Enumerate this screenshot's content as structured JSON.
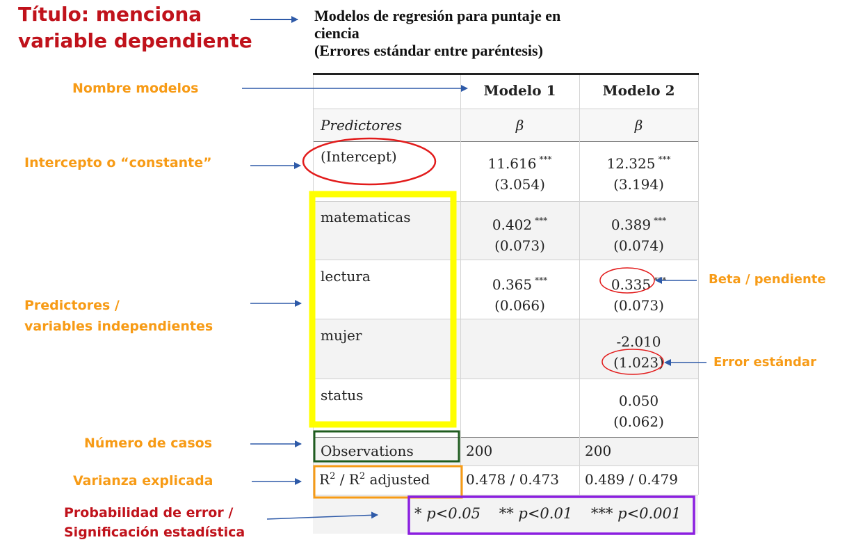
{
  "title": {
    "line1": "Modelos de regresión para puntaje en",
    "line2": "ciencia",
    "line3": "(Errores estándar entre paréntesis)"
  },
  "annotations": {
    "titulo_1": "Título: menciona",
    "titulo_2": "variable dependiente",
    "nombre_modelos": "Nombre modelos",
    "intercepto": "Intercepto o “constante”",
    "predictores_1": "Predictores /",
    "predictores_2": "variables independientes",
    "numero_casos": "Número de casos",
    "varianza": "Varianza explicada",
    "probabilidad_1": "Probabilidad de error /",
    "probabilidad_2": "Significación estadística",
    "beta": "Beta / pendiente",
    "error": "Error estándar"
  },
  "table": {
    "models": [
      "Modelo 1",
      "Modelo 2"
    ],
    "predictors_header": "Predictores",
    "beta_symbol": "β",
    "significance_stars": "***",
    "rows": [
      {
        "name": "(Intercept)",
        "m1_est": "11.616",
        "m1_se": "(3.054)",
        "m2_est": "12.325",
        "m2_se": "(3.194)",
        "m1_stars": "***",
        "m2_stars": "***"
      },
      {
        "name": "matematicas",
        "m1_est": "0.402",
        "m1_se": "(0.073)",
        "m2_est": "0.389",
        "m2_se": "(0.074)",
        "m1_stars": "***",
        "m2_stars": "***"
      },
      {
        "name": "lectura",
        "m1_est": "0.365",
        "m1_se": "(0.066)",
        "m2_est": "0.335",
        "m2_se": "(0.073)",
        "m1_stars": "***",
        "m2_stars": "***"
      },
      {
        "name": "mujer",
        "m1_est": "",
        "m1_se": "",
        "m2_est": "-2.010",
        "m2_se": "(1.023)",
        "m1_stars": "",
        "m2_stars": ""
      },
      {
        "name": "status",
        "m1_est": "",
        "m1_se": "",
        "m2_est": "0.050",
        "m2_se": "(0.062)",
        "m1_stars": "",
        "m2_stars": ""
      }
    ],
    "observations_label": "Observations",
    "observations": [
      "200",
      "200"
    ],
    "r2_label_a": "R",
    "r2_sup": "2",
    "r2_label_b": " / R",
    "r2_label_c": " adjusted",
    "r2_values": [
      "0.478 / 0.473",
      "0.489 / 0.479"
    ],
    "footnote": {
      "s1": "*",
      "p1": "p<0.05",
      "s2": "**",
      "p2": "p<0.01",
      "s3": "***",
      "p3": "p<0.001"
    }
  },
  "colors": {
    "red_label": "#c0121b",
    "orange_label": "#f79b16",
    "arrow_blue": "#2e5aa8",
    "highlight_yellow": "#ffff00",
    "box_green": "#1f5c1f",
    "box_orange": "#f79b16",
    "box_purple": "#8b1fe0",
    "ellipse_red": "#e21b1b"
  }
}
